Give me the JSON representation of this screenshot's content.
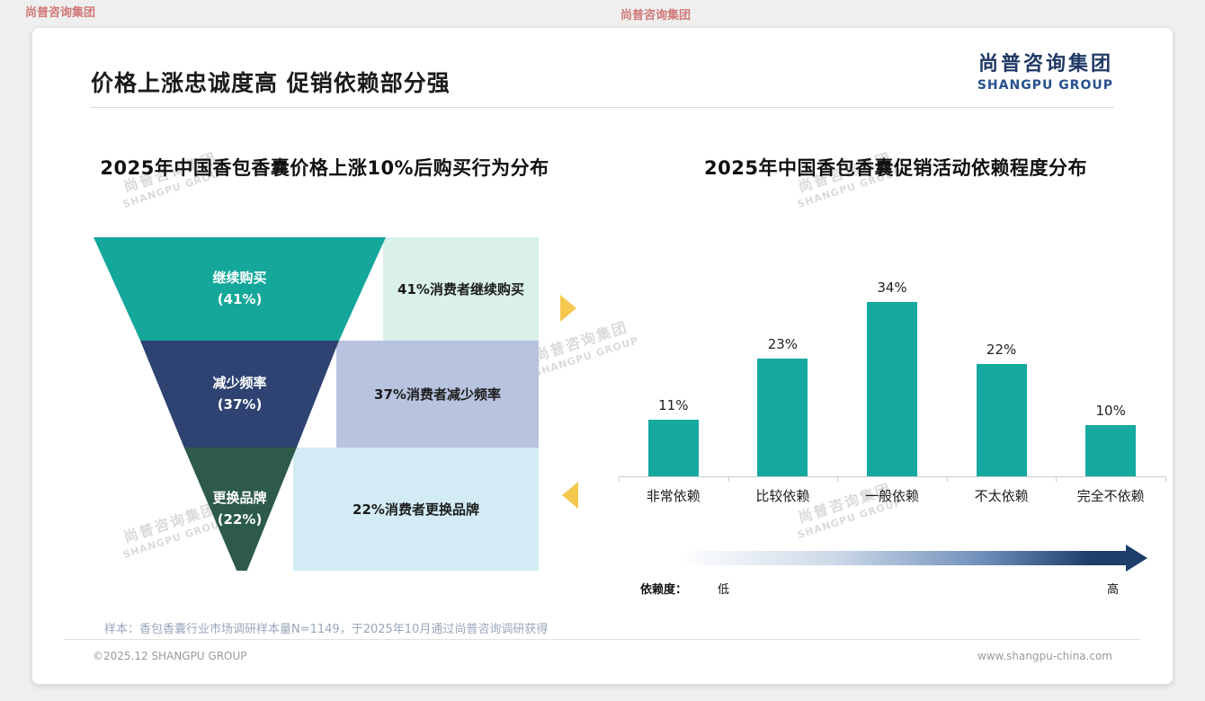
{
  "page": {
    "header": {
      "title": "价格上涨忠诚度高 促销依赖部分强"
    },
    "logo": {
      "cn": "尚普咨询集团",
      "en": "SHANGPU GROUP"
    },
    "watermark": {
      "cn": "尚普咨询集团",
      "en": "SHANGPU GROUP"
    },
    "footer": {
      "sample_note": "样本：香包香囊行业市场调研样本量N=1149，于2025年10月通过尚普咨询调研获得",
      "copyright": "©2025.12 SHANGPU GROUP",
      "website": "www.shangpu-china.com"
    }
  },
  "colors": {
    "funnel_teal": "#14a79a",
    "funnel_navy": "#2e4372",
    "funnel_green": "#2d5a4a",
    "panel_mint": "#d9f0eb",
    "panel_periwinkle": "#b7c3df",
    "panel_cyan": "#d2ebf5",
    "bar_teal": "#15a9a0",
    "arrow_yellow": "#f4c84f",
    "logo_navy": "#1f3864",
    "gradient_dark": "#1e3e6b"
  },
  "chart_data": [
    {
      "type": "bar",
      "variant": "funnel",
      "title": "2025年中国香包香囊价格上涨10%后购买行为分布",
      "categories": [
        "继续购买",
        "减少频率",
        "更换品牌"
      ],
      "values": [
        41,
        37,
        22
      ],
      "segments": [
        {
          "label": "继续购买",
          "pct": "(41%)",
          "value": 41,
          "desc": "41%消费者继续购买"
        },
        {
          "label": "减少频率",
          "pct": "(37%)",
          "value": 37,
          "desc": "37%消费者减少频率"
        },
        {
          "label": "更换品牌",
          "pct": "(22%)",
          "value": 22,
          "desc": "22%消费者更换品牌"
        }
      ],
      "legend": "none",
      "grid": false
    },
    {
      "type": "bar",
      "title": "2025年中国香包香囊促销活动依赖程度分布",
      "categories": [
        "非常依赖",
        "比较依赖",
        "一般依赖",
        "不太依赖",
        "完全不依赖"
      ],
      "values": [
        11,
        23,
        34,
        22,
        10
      ],
      "value_labels": [
        "11%",
        "23%",
        "34%",
        "22%",
        "10%"
      ],
      "ylim": [
        0,
        40
      ],
      "legend": "none",
      "grid": false,
      "axis_note": {
        "label": "依赖度：",
        "low": "低",
        "high": "高"
      }
    }
  ]
}
